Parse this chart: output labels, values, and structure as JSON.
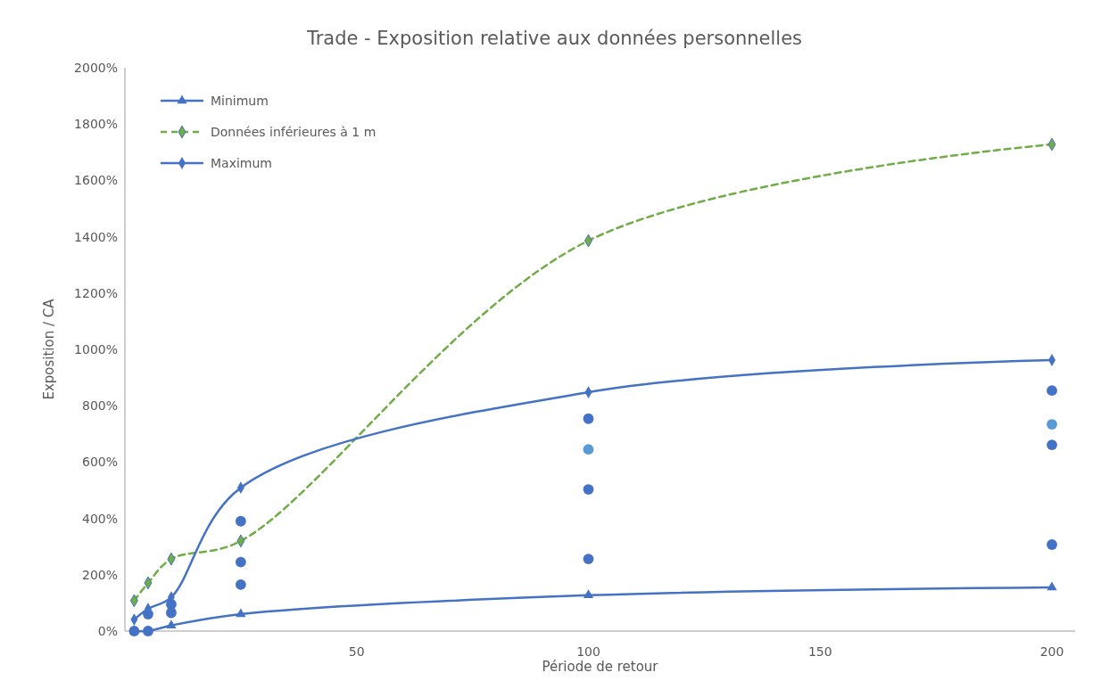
{
  "chart_data": {
    "type": "line",
    "title": "Trade - Exposition relative aux données personnelles",
    "xlabel": "Période de retour",
    "ylabel": "Exposition / CA",
    "xlim": [
      0,
      205
    ],
    "xticks": [
      50,
      100,
      150,
      200
    ],
    "ylim": [
      0,
      2000
    ],
    "yticks": [
      {
        "value": 0,
        "label": "0%"
      },
      {
        "value": 200,
        "label": "200%"
      },
      {
        "value": 400,
        "label": "400%"
      },
      {
        "value": 600,
        "label": "600%"
      },
      {
        "value": 800,
        "label": "800%"
      },
      {
        "value": 1000,
        "label": "1000%"
      },
      {
        "value": 1200,
        "label": "1200%"
      },
      {
        "value": 1400,
        "label": "1400%"
      },
      {
        "value": 1600,
        "label": "1600%"
      },
      {
        "value": 1800,
        "label": "1800%"
      },
      {
        "value": 2000,
        "label": "2000%"
      }
    ],
    "grid": false,
    "legend": "top left",
    "series": [
      {
        "type": "scatter",
        "color": "#4472c4",
        "marker": "circle",
        "x": [
          2,
          5,
          5,
          10,
          10,
          25,
          25,
          25,
          100,
          100,
          100,
          200,
          200,
          200
        ],
        "values": [
          0,
          60,
          0,
          95,
          65,
          390,
          245,
          165,
          754,
          503,
          256,
          854,
          661,
          307
        ]
      },
      {
        "type": "scatter",
        "color": "#5b9bd5",
        "marker": "circle",
        "x": [
          100,
          200
        ],
        "values": [
          645,
          734
        ]
      },
      {
        "name": "Minimum",
        "color": "#4472c4",
        "marker": "triangle",
        "line_style": "solid",
        "x": [
          2,
          5,
          10,
          25,
          100,
          200
        ],
        "values": [
          0,
          0,
          20,
          60,
          127,
          155
        ]
      },
      {
        "name": "Données inférieures à 1 m",
        "color": "#70ad47",
        "marker": "diamond",
        "line_style": "dashed",
        "x": [
          2,
          5,
          10,
          25,
          100,
          200
        ],
        "values": [
          108,
          171,
          256,
          320,
          1386,
          1728
        ]
      },
      {
        "name": "Maximum",
        "color": "#4472c4",
        "marker": "diamond",
        "line_style": "solid",
        "x": [
          2,
          5,
          10,
          25,
          100,
          200
        ],
        "values": [
          41,
          79,
          120,
          509,
          848,
          962
        ]
      }
    ]
  }
}
